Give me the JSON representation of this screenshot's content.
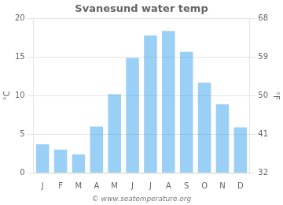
{
  "chart_data": {
    "type": "bar",
    "title": "Svanesund water temp",
    "categories": [
      "J",
      "F",
      "M",
      "A",
      "M",
      "J",
      "J",
      "A",
      "S",
      "O",
      "N",
      "D"
    ],
    "values": [
      3.7,
      3.0,
      2.4,
      6.0,
      10.2,
      14.9,
      17.8,
      18.4,
      15.7,
      11.7,
      8.9,
      5.9
    ],
    "ylim": [
      0,
      20
    ],
    "yticks": [
      0,
      5,
      10,
      15,
      20
    ],
    "y2lim": [
      32,
      68
    ],
    "y2ticks": [
      32,
      41,
      50,
      59,
      68
    ],
    "ylabel": "°C",
    "y2label": "°F",
    "annotations": [
      "© www.seatemperature.org"
    ],
    "grid": true
  }
}
